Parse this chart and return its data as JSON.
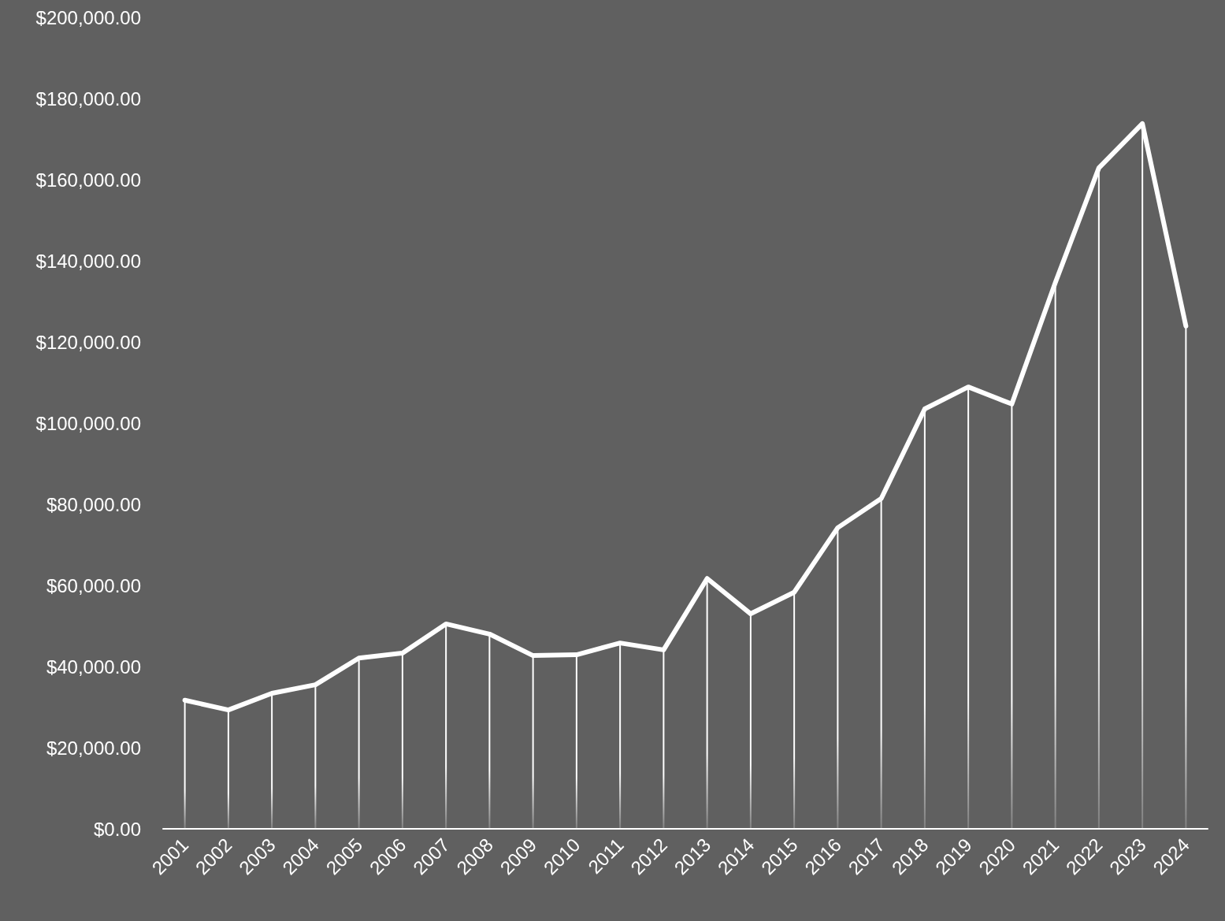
{
  "chart_data": {
    "type": "line",
    "categories": [
      "2001",
      "2002",
      "2003",
      "2004",
      "2005",
      "2006",
      "2007",
      "2008",
      "2009",
      "2010",
      "2011",
      "2012",
      "2013",
      "2014",
      "2015",
      "2016",
      "2017",
      "2018",
      "2019",
      "2020",
      "2021",
      "2022",
      "2023",
      "2024"
    ],
    "series": [
      {
        "type": "bar",
        "color": "#ffffff",
        "values": [
          31700,
          29300,
          33400,
          35500,
          42100,
          43300,
          50500,
          48000,
          42700,
          42900,
          45800,
          44100,
          61700,
          53000,
          58300,
          74200,
          81400,
          103500,
          108900,
          104700,
          134600,
          162900,
          173800,
          123900
        ]
      },
      {
        "color": "#ffffff",
        "values": [
          31700,
          29300,
          33400,
          35500,
          42100,
          43300,
          50500,
          48000,
          42700,
          42900,
          45800,
          44100,
          61700,
          53000,
          58300,
          74200,
          81400,
          103500,
          108900,
          104700,
          134600,
          162900,
          173800,
          123900
        ]
      }
    ],
    "ylim": [
      0,
      200000
    ],
    "yticks": [
      {
        "value": 0,
        "label": "$0.00"
      },
      {
        "value": 20000,
        "label": "$20,000.00"
      },
      {
        "value": 40000,
        "label": "$40,000.00"
      },
      {
        "value": 60000,
        "label": "$60,000.00"
      },
      {
        "value": 80000,
        "label": "$80,000.00"
      },
      {
        "value": 100000,
        "label": "$100,000.00"
      },
      {
        "value": 120000,
        "label": "$120,000.00"
      },
      {
        "value": 140000,
        "label": "$140,000.00"
      },
      {
        "value": 160000,
        "label": "$160,000.00"
      },
      {
        "value": 180000,
        "label": "$180,000.00"
      },
      {
        "value": 200000,
        "label": "$200,000.00"
      }
    ],
    "grid": false,
    "marker": "none",
    "line_style": "solid"
  }
}
